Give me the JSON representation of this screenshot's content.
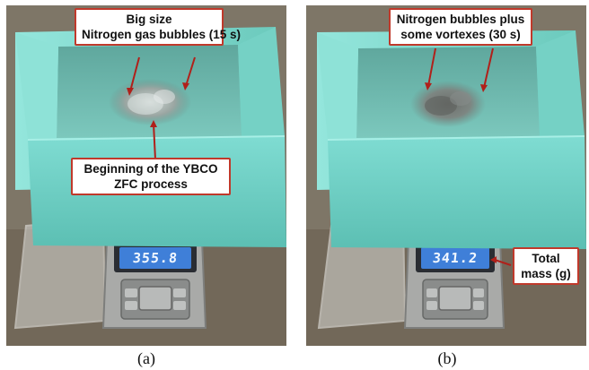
{
  "panels": {
    "a": {
      "callout_top": [
        "Big size",
        "Nitrogen gas bubbles (15 s)"
      ],
      "callout_bottom": [
        "Beginning of the YBCO",
        "ZFC process"
      ],
      "scale_reading": "355.8",
      "caption": "(a)"
    },
    "b": {
      "callout_top": [
        "Nitrogen bubbles plus",
        "some vortexes (30 s)"
      ],
      "callout_scale": [
        "Total",
        "mass (g)"
      ],
      "scale_reading": "341.2",
      "caption": "(b)"
    }
  },
  "colors": {
    "callout_border": "#c0392b",
    "arrow": "#b0201a",
    "foam": "#7fd9cf",
    "lcd": "#3f7fd8"
  }
}
